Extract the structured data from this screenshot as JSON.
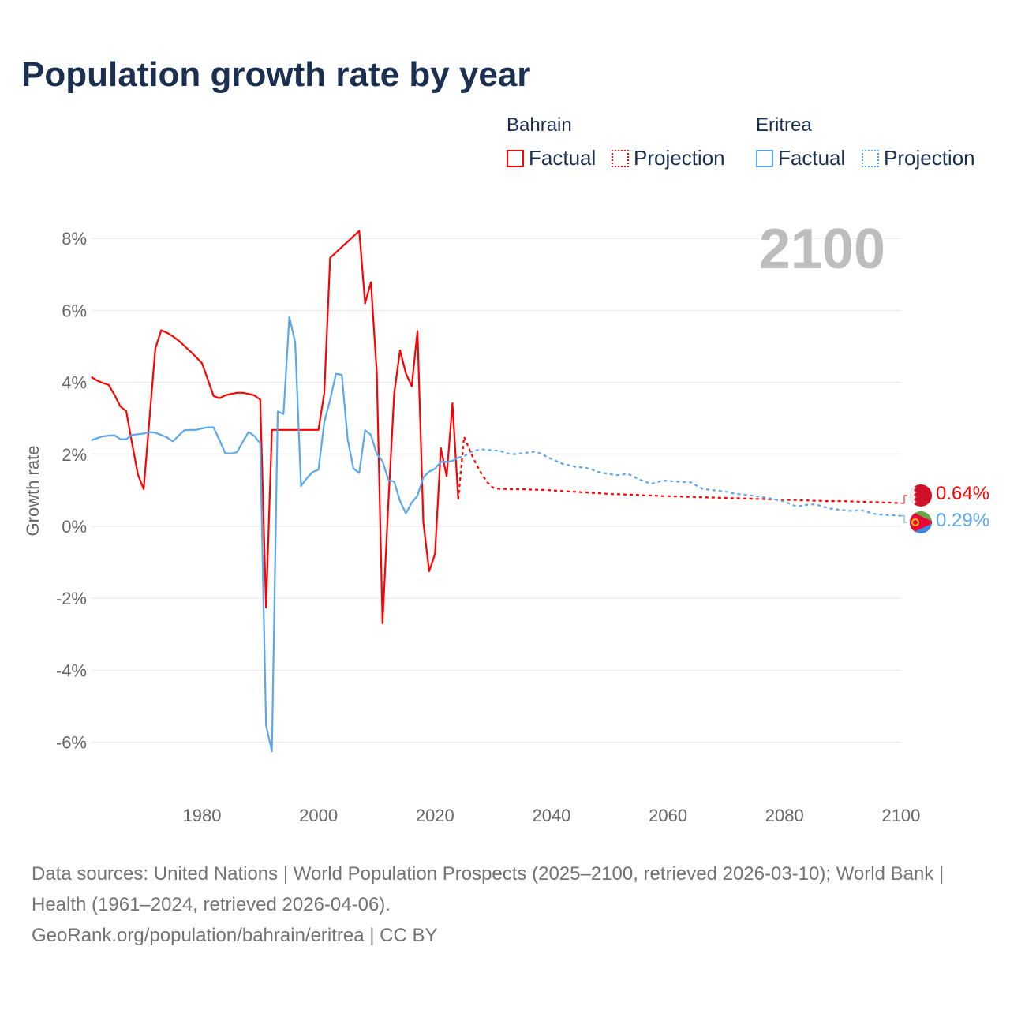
{
  "title": "Population growth rate by year",
  "current_year": "2100",
  "legend": {
    "groups": [
      {
        "country": "Bahrain",
        "factual": "Factual",
        "projection": "Projection",
        "color": "#ff0000"
      },
      {
        "country": "Eritrea",
        "factual": "Factual",
        "projection": "Projection",
        "color": "#5aa7ee"
      }
    ]
  },
  "end_labels": {
    "bahrain": "0.64%",
    "eritrea": "0.29%"
  },
  "footer": {
    "sources": "Data sources: United Nations | World Population Prospects (2025–2100, retrieved 2026-03-10); World Bank | Health (1961–2024, retrieved 2026-04-06).",
    "credit": "GeoRank.org/population/bahrain/eritrea | CC BY"
  },
  "chart_data": {
    "type": "line",
    "title": "Population growth rate by year",
    "xlabel": "",
    "ylabel": "Growth rate",
    "xlim": [
      1961,
      2100
    ],
    "ylim": [
      -7,
      9
    ],
    "x_ticks": [
      "1980",
      "2000",
      "2020",
      "2040",
      "2060",
      "2080",
      "2100"
    ],
    "x_tick_values": [
      1980,
      2000,
      2020,
      2040,
      2060,
      2080,
      2100
    ],
    "y_ticks": [
      "-6%",
      "-4%",
      "-2%",
      "0%",
      "2%",
      "4%",
      "6%",
      "8%"
    ],
    "y_tick_values": [
      -6,
      -4,
      -2,
      0,
      2,
      4,
      6,
      8
    ],
    "grid": true,
    "legend_position": "top-right",
    "series": [
      {
        "name": "Bahrain Factual",
        "color": "#ff0000",
        "style": "solid",
        "start_year": 1961,
        "values": [
          4.15,
          4.05,
          3.98,
          3.93,
          3.65,
          3.33,
          3.2,
          2.3,
          1.44,
          1.03,
          3.0,
          4.94,
          5.45,
          5.38,
          5.28,
          5.16,
          5.01,
          4.86,
          4.7,
          4.53,
          4.08,
          3.62,
          3.56,
          3.64,
          3.68,
          3.71,
          3.71,
          3.68,
          3.64,
          3.52,
          -2.26,
          2.68,
          2.68,
          2.68,
          2.68,
          2.68,
          2.68,
          2.68,
          2.68,
          2.68,
          3.71,
          7.46,
          7.61,
          7.76,
          7.91,
          8.06,
          8.21,
          6.2,
          6.78,
          4.28,
          -2.7,
          0.66,
          3.69,
          4.89,
          4.25,
          3.89,
          5.43,
          0.12,
          -1.25,
          -0.77,
          2.17,
          1.39,
          3.42,
          0.75
        ]
      },
      {
        "name": "Bahrain Projection",
        "color": "#ff0000",
        "style": "dotted",
        "start_year": 2024,
        "values": [
          0.75,
          2.49,
          2.1,
          1.75,
          1.45,
          1.22,
          1.07,
          1.04,
          1.04,
          1.03,
          1.03,
          1.03,
          1.02,
          1.02,
          1.01,
          1.01,
          1.0,
          0.99,
          0.98,
          0.97,
          0.96,
          0.95,
          0.94,
          0.93,
          0.92,
          0.91,
          0.9,
          0.89,
          0.89,
          0.88,
          0.88,
          0.87,
          0.86,
          0.86,
          0.85,
          0.84,
          0.84,
          0.83,
          0.83,
          0.82,
          0.82,
          0.81,
          0.81,
          0.8,
          0.8,
          0.79,
          0.79,
          0.78,
          0.78,
          0.77,
          0.77,
          0.76,
          0.76,
          0.75,
          0.75,
          0.74,
          0.74,
          0.73,
          0.73,
          0.72,
          0.72,
          0.71,
          0.71,
          0.7,
          0.7,
          0.7,
          0.7,
          0.69,
          0.69,
          0.68,
          0.68,
          0.67,
          0.67,
          0.66,
          0.66,
          0.65,
          0.64
        ]
      },
      {
        "name": "Eritrea Factual",
        "color": "#5aa7ee",
        "style": "solid",
        "start_year": 1961,
        "values": [
          2.39,
          2.45,
          2.5,
          2.52,
          2.53,
          2.42,
          2.42,
          2.54,
          2.56,
          2.58,
          2.62,
          2.6,
          2.54,
          2.47,
          2.36,
          2.52,
          2.67,
          2.68,
          2.68,
          2.72,
          2.75,
          2.75,
          2.4,
          2.03,
          2.02,
          2.06,
          2.35,
          2.62,
          2.51,
          2.3,
          -5.53,
          -6.25,
          3.19,
          3.12,
          5.82,
          5.11,
          1.12,
          1.34,
          1.51,
          1.57,
          2.9,
          3.52,
          4.24,
          4.21,
          2.42,
          1.61,
          1.48,
          2.67,
          2.54,
          2.01,
          1.81,
          1.29,
          1.24,
          0.7,
          0.36,
          0.66,
          0.85,
          1.36,
          1.52,
          1.6,
          1.79,
          1.79,
          1.82,
          1.91
        ]
      },
      {
        "name": "Eritrea Projection",
        "color": "#5aa7ee",
        "style": "dotted",
        "start_year": 2024,
        "values": [
          1.91,
          1.95,
          2.05,
          2.11,
          2.14,
          2.12,
          2.11,
          2.1,
          2.05,
          2.0,
          2.01,
          2.03,
          2.05,
          2.07,
          2.03,
          1.95,
          1.87,
          1.8,
          1.73,
          1.7,
          1.66,
          1.64,
          1.62,
          1.58,
          1.51,
          1.48,
          1.45,
          1.42,
          1.43,
          1.46,
          1.4,
          1.3,
          1.25,
          1.18,
          1.22,
          1.27,
          1.26,
          1.25,
          1.24,
          1.23,
          1.22,
          1.12,
          1.04,
          1.02,
          1.0,
          0.98,
          0.96,
          0.92,
          0.9,
          0.88,
          0.86,
          0.84,
          0.82,
          0.79,
          0.76,
          0.72,
          0.69,
          0.62,
          0.55,
          0.57,
          0.6,
          0.61,
          0.58,
          0.53,
          0.49,
          0.47,
          0.45,
          0.43,
          0.43,
          0.45,
          0.41,
          0.36,
          0.33,
          0.32,
          0.31,
          0.3,
          0.29
        ]
      }
    ]
  }
}
